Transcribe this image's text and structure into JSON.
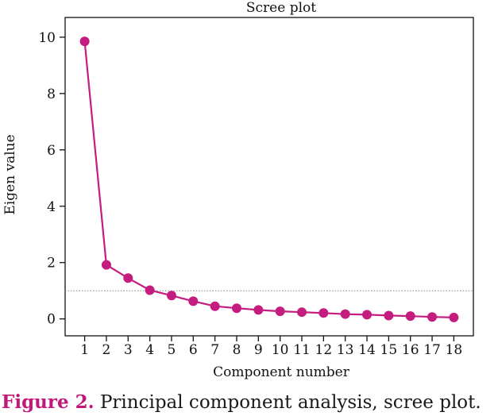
{
  "colors": {
    "series": "#c41c7f",
    "axis": "#111111",
    "reference": "#888888",
    "caption_label": "#c2187a"
  },
  "chart_data": {
    "type": "line",
    "title": "Scree plot",
    "xlabel": "Component number",
    "ylabel": "Eigen value",
    "x": [
      1,
      2,
      3,
      4,
      5,
      6,
      7,
      8,
      9,
      10,
      11,
      12,
      13,
      14,
      15,
      16,
      17,
      18
    ],
    "x_tick_labels": [
      "1",
      "2",
      "3",
      "4",
      "5",
      "6",
      "7",
      "8",
      "9",
      "10",
      "11",
      "12",
      "13",
      "14",
      "15",
      "16",
      "17",
      "18"
    ],
    "y": [
      9.85,
      1.92,
      1.45,
      1.02,
      0.83,
      0.63,
      0.45,
      0.38,
      0.32,
      0.27,
      0.24,
      0.21,
      0.17,
      0.15,
      0.12,
      0.1,
      0.07,
      0.05
    ],
    "y_ticks": [
      0,
      2,
      4,
      6,
      8,
      10
    ],
    "y_tick_labels": [
      "0",
      "2",
      "4",
      "6",
      "8",
      "10"
    ],
    "xlim": [
      0.1,
      18.9
    ],
    "ylim": [
      -0.6,
      10.7
    ],
    "reference_line": {
      "y": 1,
      "style": "dotted"
    },
    "grid": false,
    "markers": "filled-circle"
  },
  "caption": {
    "label": "Figure 2.",
    "text": "Principal component analysis, scree plot."
  }
}
